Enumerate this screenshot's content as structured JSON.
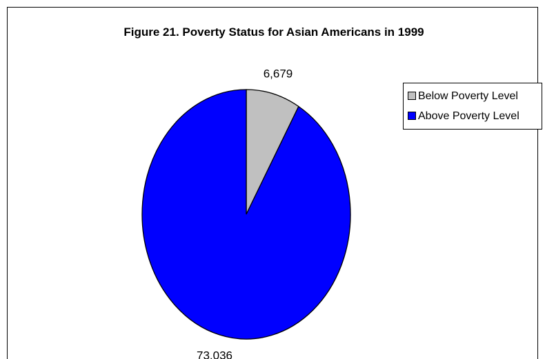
{
  "chart_data": {
    "type": "pie",
    "title": "Figure 21. Poverty Status for Asian Americans in 1999",
    "categories": [
      "Below Poverty Level",
      "Above Poverty Level"
    ],
    "values": [
      6679,
      73036
    ],
    "data_labels": [
      "6,679",
      "73,036"
    ],
    "colors": [
      "#c0c0c0",
      "#0000ff"
    ],
    "legend": {
      "position": "right",
      "entries": [
        "Below Poverty Level",
        "Above Poverty Level"
      ]
    }
  }
}
